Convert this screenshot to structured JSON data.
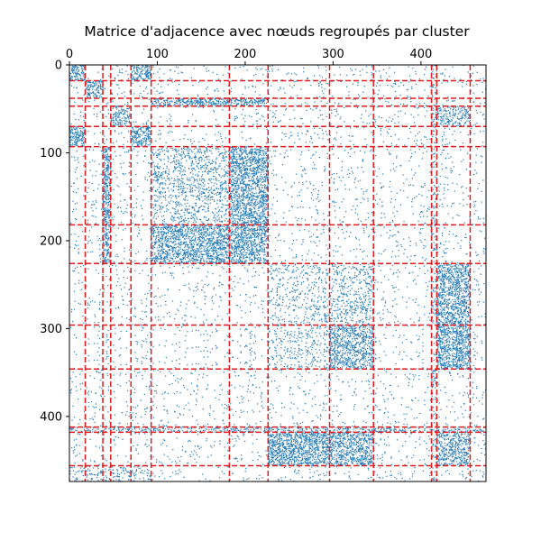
{
  "chart_data": {
    "type": "scatter",
    "title": "Matrice d'adjacence avec nœuds regroupés par cluster",
    "xlabel": "",
    "ylabel": "",
    "xlim": [
      0,
      474
    ],
    "ylim": [
      474,
      0
    ],
    "x_ticks": [
      0,
      100,
      200,
      300,
      400
    ],
    "y_ticks": [
      0,
      100,
      200,
      300,
      400
    ],
    "x_tick_position": "top",
    "grid": false,
    "point_color": "#1f77b4",
    "boundary_color": "#e41a1c",
    "boundary_style": "dashed",
    "cluster_boundaries": [
      18,
      38,
      47,
      70,
      93,
      182,
      226,
      296,
      346,
      412,
      418,
      456
    ],
    "blocks": [
      {
        "rows": [
          0,
          18
        ],
        "cols": [
          0,
          18
        ],
        "density": 0.55
      },
      {
        "rows": [
          0,
          18
        ],
        "cols": [
          70,
          93
        ],
        "density": 0.55
      },
      {
        "rows": [
          70,
          93
        ],
        "cols": [
          0,
          18
        ],
        "density": 0.55
      },
      {
        "rows": [
          70,
          93
        ],
        "cols": [
          70,
          93
        ],
        "density": 0.55
      },
      {
        "rows": [
          18,
          38
        ],
        "cols": [
          18,
          38
        ],
        "density": 0.5
      },
      {
        "rows": [
          38,
          47
        ],
        "cols": [
          93,
          226
        ],
        "density": 0.6
      },
      {
        "rows": [
          93,
          226
        ],
        "cols": [
          38,
          47
        ],
        "density": 0.6
      },
      {
        "rows": [
          47,
          70
        ],
        "cols": [
          47,
          70
        ],
        "density": 0.45
      },
      {
        "rows": [
          47,
          70
        ],
        "cols": [
          412,
          456
        ],
        "density": 0.35
      },
      {
        "rows": [
          93,
          182
        ],
        "cols": [
          93,
          182
        ],
        "density": 0.22
      },
      {
        "rows": [
          93,
          182
        ],
        "cols": [
          182,
          226
        ],
        "density": 0.55
      },
      {
        "rows": [
          182,
          226
        ],
        "cols": [
          93,
          182
        ],
        "density": 0.55
      },
      {
        "rows": [
          182,
          226
        ],
        "cols": [
          182,
          226
        ],
        "density": 0.55
      },
      {
        "rows": [
          226,
          296
        ],
        "cols": [
          226,
          296
        ],
        "density": 0.12
      },
      {
        "rows": [
          226,
          296
        ],
        "cols": [
          296,
          346
        ],
        "density": 0.2
      },
      {
        "rows": [
          226,
          346
        ],
        "cols": [
          418,
          456
        ],
        "density": 0.55
      },
      {
        "rows": [
          296,
          346
        ],
        "cols": [
          296,
          346
        ],
        "density": 0.5
      },
      {
        "rows": [
          296,
          346
        ],
        "cols": [
          226,
          296
        ],
        "density": 0.12
      },
      {
        "rows": [
          418,
          456
        ],
        "cols": [
          226,
          346
        ],
        "density": 0.55
      },
      {
        "rows": [
          418,
          456
        ],
        "cols": [
          418,
          456
        ],
        "density": 0.5
      },
      {
        "rows": [
          412,
          418
        ],
        "cols": [
          0,
          474
        ],
        "density": 0.35
      },
      {
        "rows": [
          0,
          474
        ],
        "cols": [
          412,
          418
        ],
        "density": 0.2
      },
      {
        "rows": [
          456,
          474
        ],
        "cols": [
          0,
          93
        ],
        "density": 0.2
      }
    ],
    "background_density": 0.035
  }
}
